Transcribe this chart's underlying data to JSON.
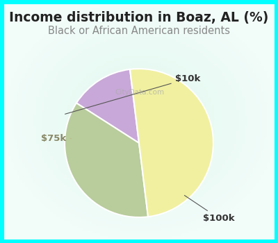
{
  "title": "Income distribution in Boaz, AL (%)",
  "subtitle": "Black or African American residents",
  "slices": [
    {
      "label": "$10k",
      "value": 14,
      "color": "#c8a8d8"
    },
    {
      "label": "$100k",
      "value": 36,
      "color": "#b8cc9c"
    },
    {
      "label": "$75k",
      "value": 50,
      "color": "#f0f0a0"
    }
  ],
  "background_color": "#00ffff",
  "plot_bg_color": "#d0ece8",
  "title_color": "#222222",
  "subtitle_color": "#888888",
  "title_fontsize": 13.5,
  "subtitle_fontsize": 10.5,
  "label_fontsize": 9.5,
  "start_angle": 97
}
